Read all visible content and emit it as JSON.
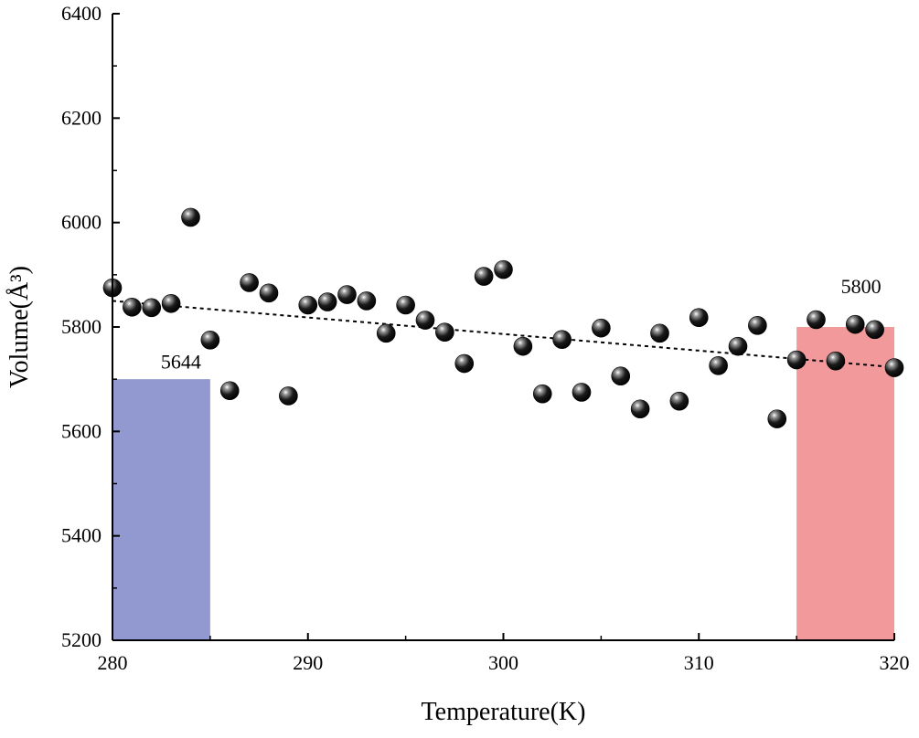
{
  "chart_data": {
    "type": "scatter",
    "xlabel": "Temperature(K)",
    "ylabel": "Volume(Å³)",
    "xlim": [
      280,
      320
    ],
    "ylim": [
      5200,
      6400
    ],
    "xticks": [
      280,
      290,
      300,
      310,
      320
    ],
    "yticks": [
      5200,
      5400,
      5600,
      5800,
      6000,
      6200,
      6400
    ],
    "grid": false,
    "series": [
      {
        "name": "Volume",
        "marker": "sphere",
        "color": "#111111",
        "x": [
          280,
          281,
          282,
          283,
          284,
          285,
          286,
          287,
          288,
          289,
          290,
          291,
          292,
          293,
          294,
          295,
          296,
          297,
          298,
          299,
          300,
          301,
          302,
          303,
          304,
          305,
          306,
          307,
          308,
          309,
          310,
          311,
          312,
          313,
          314,
          315,
          316,
          317,
          318,
          319,
          320
        ],
        "y": [
          5875,
          5838,
          5837,
          5845,
          6010,
          5775,
          5678,
          5885,
          5865,
          5668,
          5842,
          5848,
          5862,
          5850,
          5788,
          5842,
          5813,
          5790,
          5730,
          5897,
          5910,
          5763,
          5672,
          5776,
          5675,
          5798,
          5706,
          5643,
          5788,
          5658,
          5818,
          5726,
          5763,
          5803,
          5624,
          5737,
          5814,
          5735,
          5805,
          5795,
          5722
        ]
      }
    ],
    "trendline": {
      "style": "dotted",
      "x": [
        280,
        320
      ],
      "y": [
        5850,
        5723
      ]
    },
    "highlights": [
      {
        "name": "low-range",
        "x_from": 280,
        "x_to": 285,
        "y_from": 5200,
        "y_to": 5700,
        "color": "#9199d0",
        "label": "5644",
        "label_x": 283.5,
        "label_y": 5720
      },
      {
        "name": "high-range",
        "x_from": 315,
        "x_to": 320,
        "y_from": 5200,
        "y_to": 5800,
        "color": "#f29a9b",
        "label": "5800",
        "label_x": 318.3,
        "label_y": 5865
      }
    ]
  }
}
